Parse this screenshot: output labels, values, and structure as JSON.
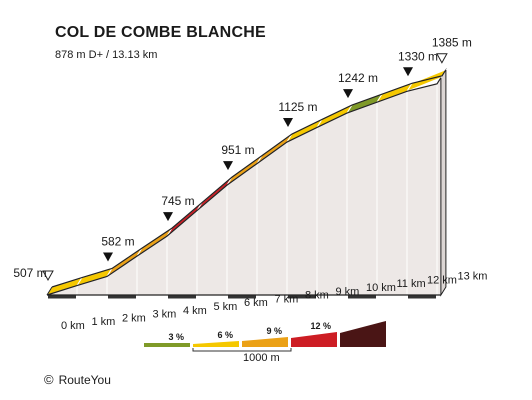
{
  "chart_data": {
    "type": "area",
    "title": "COL DE COMBE BLANCHE",
    "subtitle": "878 m D+ / 13.13 km",
    "x_unit": "km",
    "x_ticks": [
      "0 km",
      "1 km",
      "2 km",
      "3 km",
      "4 km",
      "5 km",
      "6 km",
      "7 km",
      "8 km",
      "9 km",
      "10 km",
      "11 km",
      "12 km",
      "13 km"
    ],
    "distance_km": [
      0,
      1,
      2,
      3,
      4,
      5,
      6,
      7,
      8,
      9,
      10,
      11,
      12,
      13,
      13.13
    ],
    "elevation_m": [
      507,
      545,
      582,
      664,
      745,
      848,
      951,
      1038,
      1125,
      1184,
      1242,
      1286,
      1330,
      1360,
      1385
    ],
    "segments": [
      {
        "from_km": 0,
        "to_km": 1,
        "gradient_class": "yellow"
      },
      {
        "from_km": 1,
        "to_km": 2,
        "gradient_class": "yellow"
      },
      {
        "from_km": 2,
        "to_km": 3,
        "gradient_class": "orange"
      },
      {
        "from_km": 3,
        "to_km": 4,
        "gradient_class": "orange"
      },
      {
        "from_km": 4,
        "to_km": 5,
        "gradient_class": "red"
      },
      {
        "from_km": 5,
        "to_km": 6,
        "gradient_class": "red"
      },
      {
        "from_km": 6,
        "to_km": 7,
        "gradient_class": "orange"
      },
      {
        "from_km": 7,
        "to_km": 8,
        "gradient_class": "orange"
      },
      {
        "from_km": 8,
        "to_km": 9,
        "gradient_class": "yellow"
      },
      {
        "from_km": 9,
        "to_km": 10,
        "gradient_class": "yellow"
      },
      {
        "from_km": 10,
        "to_km": 11,
        "gradient_class": "green"
      },
      {
        "from_km": 11,
        "to_km": 12,
        "gradient_class": "yellow"
      },
      {
        "from_km": 12,
        "to_km": 13.13,
        "gradient_class": "yellow"
      }
    ],
    "markers": [
      {
        "label": "507 m",
        "km": 0,
        "style": "outline"
      },
      {
        "label": "582 m",
        "km": 2,
        "style": "filled"
      },
      {
        "label": "745 m",
        "km": 4,
        "style": "filled"
      },
      {
        "label": "951 m",
        "km": 6,
        "style": "filled"
      },
      {
        "label": "1125 m",
        "km": 8,
        "style": "filled"
      },
      {
        "label": "1242 m",
        "km": 10,
        "style": "filled"
      },
      {
        "label": "1330 m",
        "km": 12,
        "style": "filled"
      },
      {
        "label": "1385 m",
        "km": 13.13,
        "style": "outline"
      }
    ],
    "legend": {
      "items": [
        {
          "label": "3 %",
          "color": "#7f9a28",
          "class": "green"
        },
        {
          "label": "6 %",
          "color": "#f5c800",
          "class": "yellow"
        },
        {
          "label": "9 %",
          "color": "#eba116",
          "class": "orange"
        },
        {
          "label": "12 %",
          "color": "#cd1d24",
          "class": "red"
        },
        {
          "label": "",
          "color": "#4a1515",
          "class": "darkred"
        }
      ],
      "scale_label": "1000 m",
      "placement": "bottom-center"
    }
  },
  "footer": {
    "copyright": "RouteYou"
  }
}
